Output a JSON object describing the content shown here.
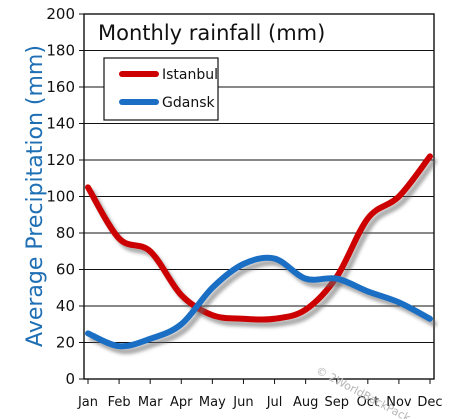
{
  "chart_data": {
    "type": "line",
    "title": "Monthly rainfall (mm)",
    "ylabel": "Average Precipitation (mm)",
    "xlabel": "",
    "categories": [
      "Jan",
      "Feb",
      "Mar",
      "Apr",
      "May",
      "Jun",
      "Jul",
      "Aug",
      "Sep",
      "Oct",
      "Nov",
      "Dec"
    ],
    "ylim": [
      0,
      200
    ],
    "yticks": [
      0,
      20,
      40,
      60,
      80,
      100,
      120,
      140,
      160,
      180,
      200
    ],
    "grid": true,
    "legend_position": "top-left",
    "series": [
      {
        "name": "Istanbul",
        "color": "#cc0000",
        "values": [
          105,
          77,
          70,
          46,
          35,
          33,
          33,
          38,
          56,
          88,
          100,
          122
        ]
      },
      {
        "name": "Gdansk",
        "color": "#1a6fc4",
        "values": [
          25,
          18,
          22,
          30,
          50,
          63,
          66,
          55,
          55,
          48,
          42,
          33
        ]
      }
    ],
    "watermark": "© 2WorldBackPack.com"
  }
}
